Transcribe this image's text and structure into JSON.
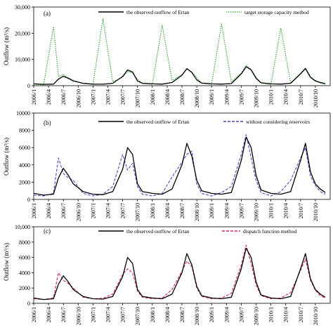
{
  "figure": {
    "y_axis_label": "Outflow (m³/s)"
  },
  "date_ticks": [
    "2006/1",
    "2006/4",
    "2006/7",
    "2006/10",
    "2007/1",
    "2007/4",
    "2007/7",
    "2007/10",
    "2008/1",
    "2008/4",
    "2008/7",
    "2008/10",
    "2009/1",
    "2009/4",
    "2009/7",
    "2009/10",
    "2010/1",
    "2010/4",
    "2010/7",
    "2010/10"
  ],
  "colors": {
    "observed": "#000000",
    "target_storage": "#2ca02c",
    "without_reservoirs": "#4a4ac8",
    "dispatch": "#d6246e"
  },
  "chart_data": [
    {
      "type": "line",
      "panel": "(a)",
      "x_range": [
        "2006/1",
        "2010/12"
      ],
      "ylim": [
        0,
        30000
      ],
      "yticks": [
        "0",
        "10,000",
        "20,000",
        "30,000"
      ],
      "ylabel": "Outflow (m³/s)",
      "legend_placement": "top",
      "x_months": [
        0,
        2,
        4,
        5,
        6,
        7,
        8,
        10,
        12,
        14,
        16,
        18,
        19,
        20,
        21,
        22,
        24,
        26,
        28,
        30,
        31,
        32,
        33,
        34,
        36,
        38,
        40,
        42,
        43,
        44,
        45,
        46,
        48,
        50,
        52,
        54,
        55,
        56,
        57,
        58,
        59
      ],
      "series": [
        {
          "name": "the observed outflow of Ertan",
          "style": "solid",
          "values": [
            700,
            500,
            600,
            2500,
            3600,
            2800,
            1800,
            900,
            600,
            550,
            900,
            3500,
            6000,
            5200,
            1800,
            900,
            700,
            600,
            1200,
            4000,
            6500,
            5000,
            2200,
            1000,
            700,
            600,
            800,
            4500,
            7200,
            6000,
            2800,
            1100,
            700,
            600,
            900,
            4500,
            6500,
            3200,
            1800,
            1200,
            800
          ]
        },
        {
          "name": "target storage capacity method",
          "style": "dotted",
          "values": [
            600,
            300,
            22500,
            3500,
            4200,
            3000,
            2000,
            800,
            500,
            25500,
            1500,
            3200,
            5500,
            4800,
            2500,
            800,
            500,
            23000,
            2000,
            4200,
            6500,
            5200,
            3000,
            900,
            500,
            23500,
            1500,
            4800,
            7800,
            6200,
            3200,
            1000,
            400,
            22000,
            1000,
            4800,
            6800,
            3500,
            2000,
            1000,
            500
          ]
        }
      ]
    },
    {
      "type": "line",
      "panel": "(b)",
      "x_range": [
        "2006/1",
        "2010/12"
      ],
      "ylim": [
        0,
        10000
      ],
      "yticks": [
        "0",
        "2000",
        "4000",
        "6000",
        "8000",
        "10000"
      ],
      "ylabel": "Outflow (m³/s)",
      "legend_placement": "top",
      "x_months": [
        0,
        2,
        4,
        5,
        6,
        7,
        8,
        10,
        12,
        14,
        16,
        18,
        19,
        20,
        21,
        22,
        24,
        26,
        28,
        30,
        31,
        32,
        33,
        34,
        36,
        38,
        40,
        42,
        43,
        44,
        45,
        46,
        48,
        50,
        52,
        54,
        55,
        56,
        57,
        58,
        59
      ],
      "series": [
        {
          "name": "the observed outflow of Ertan",
          "style": "solid",
          "values": [
            700,
            500,
            600,
            2500,
            3600,
            2800,
            1800,
            900,
            600,
            550,
            900,
            3500,
            6000,
            5200,
            1800,
            900,
            700,
            600,
            1200,
            4000,
            6500,
            5000,
            2200,
            1000,
            700,
            600,
            800,
            4500,
            7200,
            6000,
            2800,
            1100,
            700,
            600,
            900,
            4500,
            6500,
            3200,
            1800,
            1200,
            800
          ]
        },
        {
          "name": "without considering reservoirs",
          "style": "dashed",
          "values": [
            500,
            400,
            700,
            4800,
            3000,
            2500,
            2200,
            700,
            400,
            600,
            1500,
            5200,
            3400,
            4200,
            1500,
            600,
            400,
            700,
            2600,
            4300,
            5200,
            5600,
            1800,
            700,
            400,
            800,
            1500,
            5200,
            7500,
            4800,
            2200,
            800,
            400,
            900,
            2200,
            4800,
            6000,
            2700,
            1600,
            900,
            600
          ]
        }
      ]
    },
    {
      "type": "line",
      "panel": "(c)",
      "x_range": [
        "2006/1",
        "2010/12"
      ],
      "ylim": [
        0,
        10000
      ],
      "yticks": [
        "0",
        "2000",
        "4000",
        "6000",
        "8000",
        "10,000"
      ],
      "ylabel": "Outflow (m³/s)",
      "legend_placement": "top",
      "x_months": [
        0,
        2,
        4,
        5,
        6,
        7,
        8,
        10,
        12,
        14,
        16,
        18,
        19,
        20,
        21,
        22,
        24,
        26,
        28,
        30,
        31,
        32,
        33,
        34,
        36,
        38,
        40,
        42,
        43,
        44,
        45,
        46,
        48,
        50,
        52,
        54,
        55,
        56,
        57,
        58,
        59
      ],
      "series": [
        {
          "name": "the observed outflow of Ertan",
          "style": "solid",
          "values": [
            700,
            500,
            600,
            2500,
            3600,
            2800,
            1800,
            900,
            600,
            550,
            900,
            3500,
            6000,
            5200,
            1800,
            900,
            700,
            600,
            1200,
            4000,
            6500,
            5000,
            2200,
            1000,
            700,
            600,
            800,
            4500,
            7200,
            6000,
            2800,
            1100,
            700,
            600,
            900,
            4500,
            6500,
            3200,
            1800,
            1200,
            800
          ]
        },
        {
          "name": "dispatch function method",
          "style": "dashed",
          "values": [
            600,
            500,
            700,
            4000,
            3000,
            2600,
            2000,
            800,
            600,
            650,
            1200,
            3800,
            4500,
            4000,
            1600,
            800,
            600,
            700,
            1800,
            4200,
            5500,
            4800,
            2000,
            900,
            600,
            700,
            1300,
            5000,
            7600,
            5200,
            2400,
            1000,
            600,
            700,
            1400,
            4300,
            5800,
            3000,
            1700,
            1000,
            700
          ]
        }
      ]
    }
  ],
  "panels": [
    {
      "label": "(a)",
      "legend": [
        "the observed outflow of Ertan",
        "target storage capacity method"
      ],
      "yticks": [
        "0",
        "10,000",
        "20,000",
        "30,000"
      ]
    },
    {
      "label": "(b)",
      "legend": [
        "the observed outflow of Ertan",
        "without considering reservoirs"
      ],
      "yticks": [
        "0",
        "2000",
        "4000",
        "6000",
        "8000",
        "10000"
      ]
    },
    {
      "label": "(c)",
      "legend": [
        "the observed outflow of Ertan",
        "dispatch function method"
      ],
      "yticks": [
        "0",
        "2000",
        "4000",
        "6000",
        "8000",
        "10,000"
      ]
    }
  ]
}
